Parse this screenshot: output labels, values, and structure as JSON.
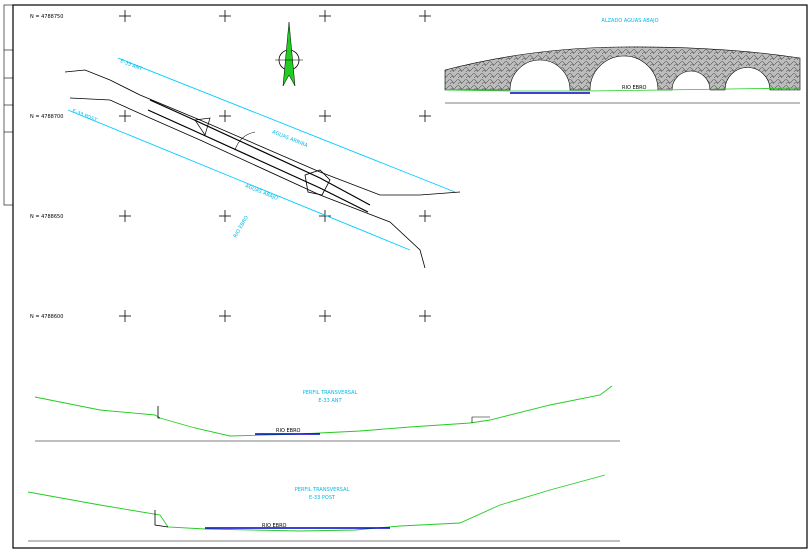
{
  "grid_labels": [
    "N = 4788750",
    "N = 4788700",
    "N = 4788650",
    "N = 4788600"
  ],
  "plan": {
    "labels": [
      "E-33 ANT",
      "E-33 POST",
      "AGUAS ARRIBA",
      "AGUAS ABAJO",
      "RIO EBRO"
    ]
  },
  "elevation": {
    "title": "ALZADO AGUAS ABAJO",
    "water_label": "RIO EBRO"
  },
  "profiles": [
    {
      "title": "PERFIL TRANSVERSAL",
      "subtitle": "E-33 ANT",
      "water_label": "RIO EBRO"
    },
    {
      "title": "PERFIL TRANSVERSAL",
      "subtitle": "E-33 POST",
      "water_label": "RIO EBRO"
    }
  ]
}
